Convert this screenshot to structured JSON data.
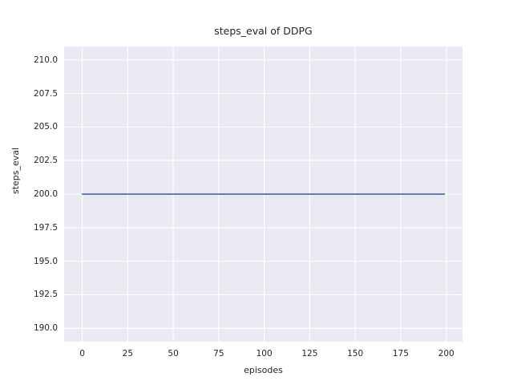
{
  "chart_data": {
    "type": "line",
    "title": "steps_eval of DDPG",
    "xlabel": "episodes",
    "ylabel": "steps_eval",
    "x_ticks": [
      0,
      25,
      50,
      75,
      100,
      125,
      150,
      175,
      200
    ],
    "x_tick_labels": [
      "0",
      "25",
      "50",
      "75",
      "100",
      "125",
      "150",
      "175",
      "200"
    ],
    "y_ticks": [
      190.0,
      192.5,
      195.0,
      197.5,
      200.0,
      202.5,
      205.0,
      207.5,
      210.0
    ],
    "y_tick_labels": [
      "190.0",
      "192.5",
      "195.0",
      "197.5",
      "200.0",
      "202.5",
      "205.0",
      "207.5",
      "210.0"
    ],
    "xlim": [
      -9.95,
      208.95
    ],
    "ylim": [
      189,
      211
    ],
    "grid": true,
    "legend": "none",
    "plot_background": "#eaeaf2",
    "grid_color": "#ffffff",
    "series": [
      {
        "name": "steps_eval",
        "color": "#4c72b0",
        "x": [
          0,
          199
        ],
        "y": [
          200,
          200
        ]
      }
    ]
  }
}
